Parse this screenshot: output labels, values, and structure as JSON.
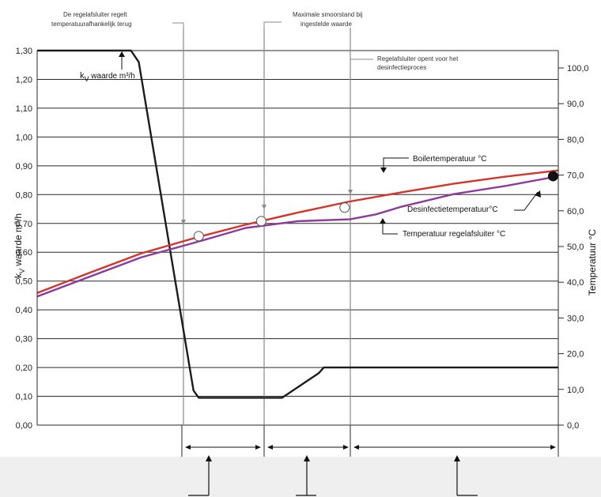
{
  "chart_data": {
    "type": "line",
    "left_axis": {
      "title_main": "k",
      "title_sub": "V",
      "title_rest": " waarde m³/h",
      "range": [
        0.0,
        1.3
      ],
      "ticks": [
        "0,00",
        "0,10",
        "0,20",
        "0,30",
        "0,40",
        "0,50",
        "0,60",
        "0,70",
        "0,80",
        "0,90",
        "1,00",
        "1,10",
        "1,20",
        "1,30"
      ],
      "tick_values": [
        0,
        0.1,
        0.2,
        0.3,
        0.4,
        0.5,
        0.6,
        0.7,
        0.8,
        0.9,
        1.0,
        1.1,
        1.2,
        1.3
      ]
    },
    "right_axis": {
      "title": "Temperatuur °C",
      "range": [
        0.0,
        105.0
      ],
      "ticks": [
        "0,0",
        "10,0",
        "20,0",
        "30,0",
        "40,0",
        "50,0",
        "60,0",
        "70,0",
        "80,0",
        "90,0",
        "100,0"
      ],
      "tick_values": [
        0,
        10,
        20,
        30,
        40,
        50,
        60,
        70,
        80,
        90,
        100
      ]
    },
    "x_range": [
      0,
      10
    ],
    "grid": true,
    "series": [
      {
        "name": "kv",
        "axis": "left",
        "color": "#1c1c1c",
        "x": [
          0,
          1.8,
          1.95,
          3.0,
          3.1,
          3.2,
          4.6,
          4.7,
          5.4,
          5.5,
          7.6,
          10
        ],
        "y": [
          1.3,
          1.3,
          1.26,
          0.12,
          0.095,
          0.095,
          0.095,
          0.095,
          0.18,
          0.2,
          0.2,
          0.2
        ]
      },
      {
        "name": "Boilertemperatuur °C",
        "axis": "right",
        "color": "#d4342a",
        "x": [
          0,
          1.0,
          2.0,
          3.0,
          4.0,
          5.0,
          6.0,
          7.0,
          8.0,
          9.0,
          10
        ],
        "y": [
          37.0,
          42.6,
          48.1,
          52.3,
          56.1,
          59.5,
          62.6,
          65.2,
          67.6,
          69.6,
          71.3
        ]
      },
      {
        "name": "Temperatuur regelafsluiter °C",
        "axis": "right",
        "color": "#8c3a9c",
        "x": [
          0,
          1.0,
          2.0,
          3.0,
          4.0,
          5.0,
          6.0,
          6.5,
          7.0,
          8.0,
          9.0,
          10
        ],
        "y": [
          36.0,
          41.5,
          47.0,
          51.0,
          55.2,
          57.1,
          57.6,
          59.0,
          61.2,
          64.7,
          67.0,
          69.7
        ]
      }
    ],
    "markers": [
      {
        "x": 3.1,
        "axis": "right",
        "y": 52.9,
        "style": "open"
      },
      {
        "x": 4.3,
        "axis": "right",
        "y": 57.1,
        "style": "open"
      },
      {
        "x": 5.9,
        "axis": "right",
        "y": 60.9,
        "style": "open"
      },
      {
        "x": 9.9,
        "axis": "right",
        "y": 69.7,
        "style": "filled"
      }
    ],
    "vlines": [
      3.1,
      4.3,
      5.9
    ],
    "annotations": {
      "a1_line1": "De regelafsluiter regelt",
      "a1_line2": "temperatuurafhankelijk terug",
      "a2_line1": "Maximale smoorstand bij",
      "a2_line2": "ingestelde waarde",
      "a3_line1": "Regelafsluiter opent voor het",
      "a3_line2": "desinfectieproces",
      "kv_main": "k",
      "kv_sub": "V",
      "kv_rest": "  waarde m³/h",
      "boiler": "Boilertemperatuur °C",
      "desinf": "Desinfectietemperatuur°C",
      "regel": "Temperatuur regelafsluiter °C"
    }
  }
}
